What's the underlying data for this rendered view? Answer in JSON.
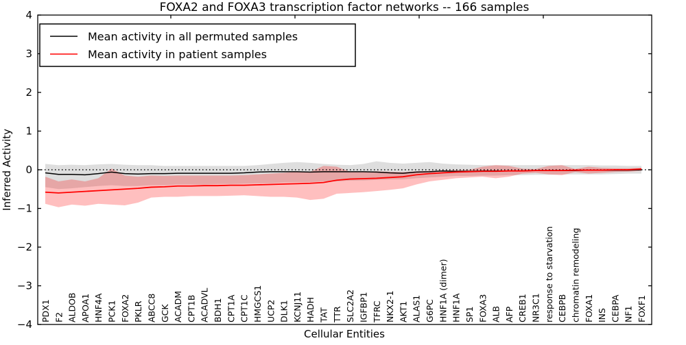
{
  "title": "FOXA2 and FOXA3 transcription factor networks -- 166 samples",
  "axes": {
    "xlabel": "Cellular Entities",
    "ylabel": "Inferred Activity",
    "ytick_labels": [
      "4",
      "3",
      "2",
      "1",
      "0",
      "−1",
      "−2",
      "−3",
      "−4"
    ]
  },
  "legend": {
    "items": [
      {
        "label": "Mean activity in all permuted samples",
        "color": "#000000"
      },
      {
        "label": "Mean activity in patient samples",
        "color": "#ff0000"
      }
    ]
  },
  "chart_data": {
    "type": "line",
    "title": "FOXA2 and FOXA3 transcription factor networks -- 166 samples",
    "xlabel": "Cellular Entities",
    "ylabel": "Inferred Activity",
    "ylim": [
      -4,
      4
    ],
    "yticks": [
      4,
      3,
      2,
      1,
      0,
      -1,
      -2,
      -3,
      -4
    ],
    "grid": false,
    "zero_line": "dotted",
    "legend_position": "upper left",
    "categories": [
      "PDX1",
      "F2",
      "ALDOB",
      "APOA1",
      "HNF4A",
      "PCK1",
      "FOXA2",
      "PKLR",
      "ABCC8",
      "GCK",
      "ACADM",
      "CPT1B",
      "ACADVL",
      "BDH1",
      "CPT1A",
      "CPT1C",
      "HMGCS1",
      "UCP2",
      "DLK1",
      "KCNJ11",
      "HADH",
      "TAT",
      "TTR",
      "SLC2A2",
      "IGFBP1",
      "TFRC",
      "NKX2-1",
      "AKT1",
      "ALAS1",
      "G6PC",
      "HNF1A (dimer)",
      "HNF1A",
      "SP1",
      "FOXA3",
      "ALB",
      "AFP",
      "CREB1",
      "NR3C1",
      "response to starvation",
      "CEBPB",
      "chromatin remodeling",
      "FOXA1",
      "INS",
      "CEBPA",
      "NF1",
      "FOXF1"
    ],
    "series": [
      {
        "name": "Mean activity in all permuted samples",
        "color": "#000000",
        "band_color": "rgba(0,0,0,0.13)",
        "values": [
          -0.08,
          -0.12,
          -0.12,
          -0.13,
          -0.1,
          -0.06,
          -0.1,
          -0.11,
          -0.1,
          -0.1,
          -0.09,
          -0.09,
          -0.09,
          -0.09,
          -0.09,
          -0.08,
          -0.06,
          -0.05,
          -0.05,
          -0.05,
          -0.06,
          -0.05,
          -0.05,
          -0.05,
          -0.05,
          -0.06,
          -0.08,
          -0.09,
          -0.06,
          -0.05,
          -0.03,
          -0.04,
          -0.04,
          -0.03,
          -0.03,
          -0.03,
          -0.03,
          -0.02,
          -0.02,
          -0.02,
          -0.02,
          -0.01,
          -0.01,
          -0.01,
          -0.01,
          0.0
        ],
        "band_upper": [
          0.15,
          0.12,
          0.13,
          0.12,
          0.14,
          0.15,
          0.13,
          0.12,
          0.12,
          0.1,
          0.1,
          0.1,
          0.1,
          0.1,
          0.1,
          0.1,
          0.12,
          0.15,
          0.18,
          0.2,
          0.18,
          0.15,
          0.13,
          0.12,
          0.15,
          0.22,
          0.18,
          0.16,
          0.18,
          0.2,
          0.16,
          0.14,
          0.13,
          0.12,
          0.12,
          0.12,
          0.12,
          0.12,
          0.12,
          0.12,
          0.12,
          0.12,
          0.11,
          0.11,
          0.1,
          0.1
        ],
        "band_lower": [
          -0.45,
          -0.5,
          -0.48,
          -0.45,
          -0.42,
          -0.4,
          -0.42,
          -0.42,
          -0.4,
          -0.4,
          -0.38,
          -0.38,
          -0.38,
          -0.37,
          -0.37,
          -0.36,
          -0.35,
          -0.35,
          -0.33,
          -0.32,
          -0.32,
          -0.3,
          -0.3,
          -0.28,
          -0.28,
          -0.26,
          -0.25,
          -0.25,
          -0.22,
          -0.2,
          -0.18,
          -0.16,
          -0.16,
          -0.15,
          -0.15,
          -0.14,
          -0.14,
          -0.13,
          -0.13,
          -0.12,
          -0.12,
          -0.12,
          -0.12,
          -0.11,
          -0.1,
          -0.1
        ]
      },
      {
        "name": "Mean activity in patient samples",
        "color": "#ff0000",
        "band_color": "rgba(255,0,0,0.25)",
        "values": [
          -0.58,
          -0.6,
          -0.58,
          -0.56,
          -0.54,
          -0.52,
          -0.5,
          -0.48,
          -0.45,
          -0.44,
          -0.42,
          -0.42,
          -0.41,
          -0.41,
          -0.4,
          -0.4,
          -0.39,
          -0.38,
          -0.37,
          -0.36,
          -0.35,
          -0.33,
          -0.27,
          -0.24,
          -0.23,
          -0.22,
          -0.2,
          -0.18,
          -0.13,
          -0.1,
          -0.08,
          -0.06,
          -0.05,
          -0.04,
          -0.04,
          -0.03,
          -0.03,
          -0.02,
          -0.02,
          -0.02,
          -0.01,
          -0.01,
          -0.01,
          0.0,
          0.0,
          0.02
        ],
        "band_upper": [
          -0.18,
          -0.3,
          -0.25,
          -0.3,
          -0.22,
          0.03,
          -0.15,
          -0.18,
          -0.15,
          -0.16,
          -0.15,
          -0.15,
          -0.15,
          -0.15,
          -0.15,
          -0.14,
          -0.12,
          -0.1,
          -0.08,
          -0.05,
          -0.05,
          0.1,
          0.08,
          -0.05,
          -0.05,
          -0.04,
          -0.05,
          -0.06,
          -0.04,
          -0.03,
          -0.02,
          -0.01,
          0.0,
          0.08,
          0.12,
          0.1,
          0.03,
          0.02,
          0.1,
          0.12,
          0.02,
          0.08,
          0.05,
          0.04,
          0.04,
          0.05
        ],
        "band_lower": [
          -0.88,
          -0.97,
          -0.9,
          -0.93,
          -0.88,
          -0.9,
          -0.92,
          -0.85,
          -0.72,
          -0.7,
          -0.7,
          -0.68,
          -0.68,
          -0.68,
          -0.67,
          -0.66,
          -0.68,
          -0.7,
          -0.7,
          -0.72,
          -0.78,
          -0.75,
          -0.62,
          -0.6,
          -0.58,
          -0.55,
          -0.52,
          -0.48,
          -0.38,
          -0.3,
          -0.26,
          -0.22,
          -0.2,
          -0.18,
          -0.22,
          -0.18,
          -0.1,
          -0.08,
          -0.12,
          -0.14,
          -0.06,
          -0.1,
          -0.08,
          -0.06,
          -0.05,
          -0.03
        ]
      }
    ]
  }
}
